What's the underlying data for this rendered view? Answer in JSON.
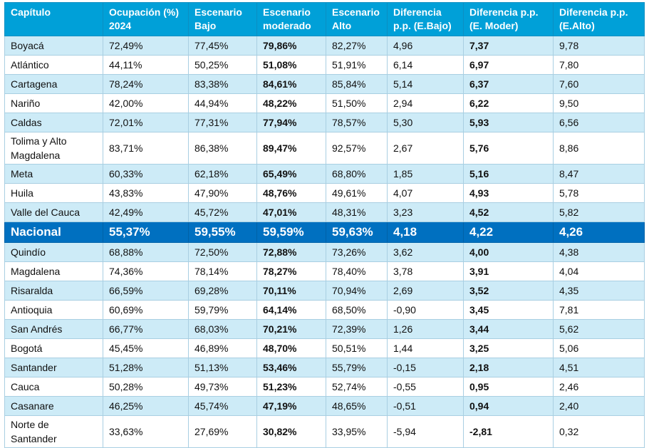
{
  "headers": [
    "Capítulo",
    "Ocupación (%) 2024",
    "Escenario Bajo",
    "Escenario moderado",
    "Escenario Alto",
    "Diferencia p.p. (E.Bajo)",
    "Diferencia p.p. (E. Moder)",
    "Diferencia p.p. (E.Alto)"
  ],
  "rows": [
    [
      "Boyacá",
      "72,49%",
      "77,45%",
      "79,86%",
      "82,27%",
      "4,96",
      "7,37",
      "9,78"
    ],
    [
      "Atlántico",
      "44,11%",
      "50,25%",
      "51,08%",
      "51,91%",
      "6,14",
      "6,97",
      "7,80"
    ],
    [
      "Cartagena",
      "78,24%",
      "83,38%",
      "84,61%",
      "85,84%",
      "5,14",
      "6,37",
      "7,60"
    ],
    [
      "Nariño",
      "42,00%",
      "44,94%",
      "48,22%",
      "51,50%",
      "2,94",
      "6,22",
      "9,50"
    ],
    [
      "Caldas",
      "72,01%",
      "77,31%",
      "77,94%",
      "78,57%",
      "5,30",
      "5,93",
      "6,56"
    ],
    [
      "Tolima y Alto Magdalena",
      "83,71%",
      "86,38%",
      "89,47%",
      "92,57%",
      "2,67",
      "5,76",
      "8,86"
    ],
    [
      "Meta",
      "60,33%",
      "62,18%",
      "65,49%",
      "68,80%",
      "1,85",
      "5,16",
      "8,47"
    ],
    [
      "Huila",
      "43,83%",
      "47,90%",
      "48,76%",
      "49,61%",
      "4,07",
      "4,93",
      "5,78"
    ],
    [
      "Valle del Cauca",
      "42,49%",
      "45,72%",
      "47,01%",
      "48,31%",
      "3,23",
      "4,52",
      "5,82"
    ],
    [
      "Nacional",
      "55,37%",
      "59,55%",
      "59,59%",
      "59,63%",
      "4,18",
      "4,22",
      "4,26"
    ],
    [
      "Quindío",
      "68,88%",
      "72,50%",
      "72,88%",
      "73,26%",
      "3,62",
      "4,00",
      "4,38"
    ],
    [
      "Magdalena",
      "74,36%",
      "78,14%",
      "78,27%",
      "78,40%",
      "3,78",
      "3,91",
      "4,04"
    ],
    [
      "Risaralda",
      "66,59%",
      "69,28%",
      "70,11%",
      "70,94%",
      "2,69",
      "3,52",
      "4,35"
    ],
    [
      "Antioquia",
      "60,69%",
      "59,79%",
      "64,14%",
      "68,50%",
      "-0,90",
      "3,45",
      "7,81"
    ],
    [
      "San Andrés",
      "66,77%",
      "68,03%",
      "70,21%",
      "72,39%",
      "1,26",
      "3,44",
      "5,62"
    ],
    [
      "Bogotá",
      "45,45%",
      "46,89%",
      "48,70%",
      "50,51%",
      "1,44",
      "3,25",
      "5,06"
    ],
    [
      "Santander",
      "51,28%",
      "51,13%",
      "53,46%",
      "55,79%",
      "-0,15",
      "2,18",
      "4,51"
    ],
    [
      "Cauca",
      "50,28%",
      "49,73%",
      "51,23%",
      "52,74%",
      "-0,55",
      "0,95",
      "2,46"
    ],
    [
      "Casanare",
      "46,25%",
      "45,74%",
      "47,19%",
      "48,65%",
      "-0,51",
      "0,94",
      "2,40"
    ],
    [
      "Norte de Santander",
      "33,63%",
      "27,69%",
      "30,82%",
      "33,95%",
      "-5,94",
      "-2,81",
      "0,32"
    ]
  ],
  "colors": {
    "header_bg": "#00a0d8",
    "row_stripe": "#cdebf7",
    "highlight_row_bg": "#0070c0"
  }
}
